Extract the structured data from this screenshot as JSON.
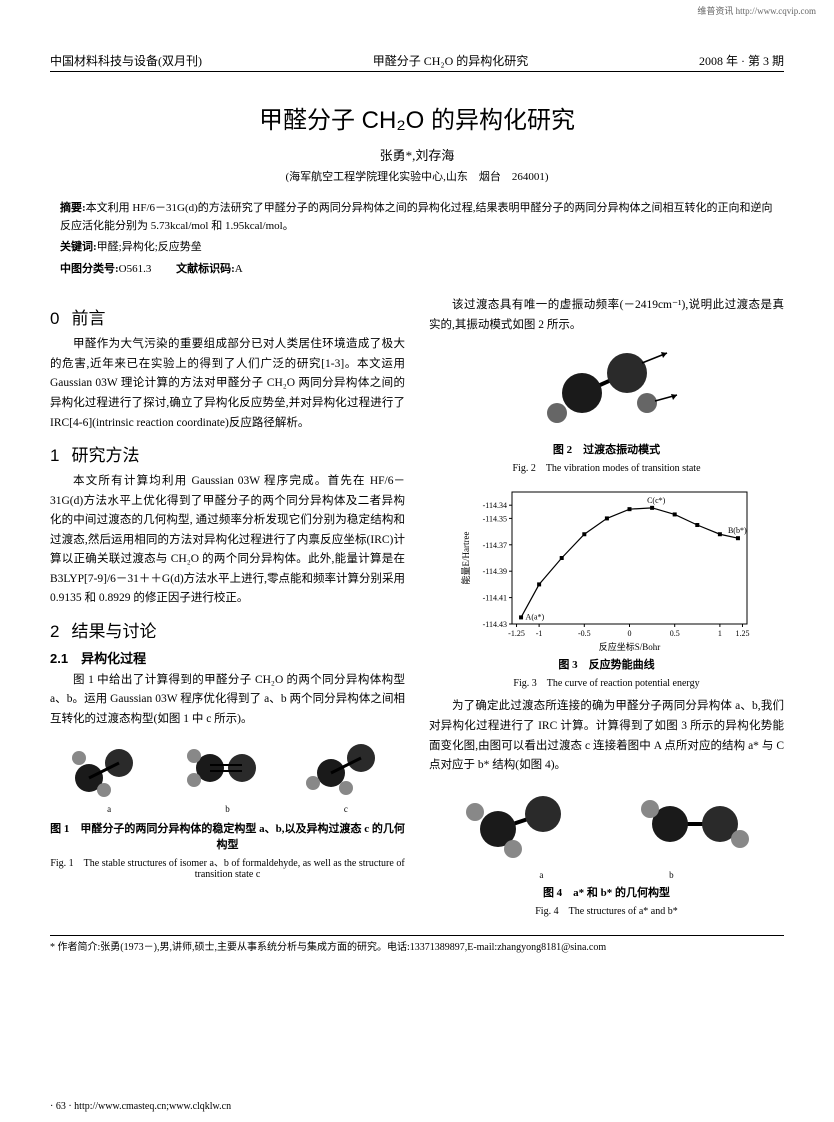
{
  "watermark": "维普资讯 http://www.cqvip.com",
  "header": {
    "left": "中国材料科技与设备(双月刊)",
    "center": "甲醛分子 CH₂O 的异构化研究",
    "right": "2008 年 · 第 3 期"
  },
  "title": "甲醛分子 CH₂O 的异构化研究",
  "authors": "张勇*,刘存海",
  "affiliation": "(海军航空工程学院理化实验中心,山东　烟台　264001)",
  "abstract_label": "摘要:",
  "abstract": "本文利用 HF/6－31G(d)的方法研究了甲醛分子的两同分异构体之间的异构化过程,结果表明甲醛分子的两同分异构体之间相互转化的正向和逆向反应活化能分别为 5.73kcal/mol 和 1.95kcal/mol。",
  "keywords_label": "关键词:",
  "keywords": "甲醛;异构化;反应势垒",
  "clc_label": "中图分类号:",
  "clc": "O561.3",
  "doccode_label": "文献标识码:",
  "doccode": "A",
  "sec0_num": "0",
  "sec0_title": "前言",
  "sec0_p1": "甲醛作为大气污染的重要组成部分已对人类居住环境造成了极大的危害,近年来已在实验上的得到了人们广泛的研究[1-3]。本文运用 Gaussian 03W 理论计算的方法对甲醛分子 CH₂O 两同分异构体之间的异构化过程进行了探讨,确立了异构化反应势垒,并对异构化过程进行了 IRC[4-6](intrinsic reaction coordinate)反应路径解析。",
  "sec1_num": "1",
  "sec1_title": "研究方法",
  "sec1_p1": "本文所有计算均利用 Gaussian 03W 程序完成。首先在 HF/6－31G(d)方法水平上优化得到了甲醛分子的两个同分异构体及二者异构化的中间过渡态的几何构型, 通过频率分析发现它们分别为稳定结构和过渡态,然后运用相同的方法对异构化过程进行了内禀反应坐标(IRC)计算以正确关联过渡态与 CH₂O 的两个同分异构体。此外,能量计算是在 B3LYP[7-9]/6－31＋＋G(d)方法水平上进行,零点能和频率计算分别采用 0.9135 和 0.8929 的修正因子进行校正。",
  "sec2_num": "2",
  "sec2_title": "结果与讨论",
  "sec21_title": "2.1　异构化过程",
  "sec21_p1": "图 1 中给出了计算得到的甲醛分子 CH₂O 的两个同分异构体构型 a、b。运用 Gaussian 03W 程序优化得到了 a、b 两个同分异构体之间相互转化的过渡态构型(如图 1 中 c 所示)。",
  "fig1_cn": "图 1　甲醛分子的两同分异构体的稳定构型 a、b,以及异构过渡态 c 的几何构型",
  "fig1_en": "Fig. 1　The stable structures of isomer a、b of formaldehyde, as well as the structure of transition state c",
  "right_p1": "该过渡态具有唯一的虚振动频率(－2419cm⁻¹),说明此过渡态是真实的,其振动模式如图 2 所示。",
  "fig2_cn": "图 2　过渡态振动模式",
  "fig2_en": "Fig. 2　The vibration modes of transition state",
  "fig3_cn": "图 3　反应势能曲线",
  "fig3_en": "Fig. 3　The curve of reaction potential energy",
  "right_p2": "为了确定此过渡态所连接的确为甲醛分子两同分异构体 a、b,我们对异构化过程进行了 IRC 计算。计算得到了如图 3 所示的异构化势能面变化图,由图可以看出过渡态 c 连接着图中 A 点所对应的结构 a* 与 C 点对应于 b* 结构(如图 4)。",
  "fig4_cn": "图 4　a* 和 b* 的几何构型",
  "fig4_en": "Fig. 4　The structures of a* and b*",
  "footnote": "* 作者简介:张勇(1973－),男,讲师,硕士,主要从事系统分析与集成方面的研究。电话:13371389897,E-mail:zhangyong8181@sina.com",
  "footer": "· 63 · http://www.cmasteq.cn;www.clqklw.cn",
  "chart": {
    "type": "line",
    "xlabel": "反应坐标S/Bohr",
    "ylabel": "能量E/Hartree",
    "xlim": [
      -1.3,
      1.3
    ],
    "ylim": [
      -114.43,
      -114.33
    ],
    "xticks": [
      -1.25,
      -1,
      -0.5,
      0,
      0.5,
      1,
      1.25
    ],
    "yticks": [
      -114.43,
      -114.41,
      -114.39,
      -114.37,
      -114.35,
      -114.34
    ],
    "points_x": [
      -1.2,
      -1.0,
      -0.75,
      -0.5,
      -0.25,
      0,
      0.25,
      0.5,
      0.75,
      1.0,
      1.2
    ],
    "points_y": [
      -114.425,
      -114.4,
      -114.38,
      -114.362,
      -114.35,
      -114.343,
      -114.342,
      -114.347,
      -114.355,
      -114.362,
      -114.365
    ],
    "annot_A": "A(a*)",
    "annot_B": "B(b*)",
    "annot_C": "C(c*)",
    "line_color": "#000000",
    "marker_color": "#000000",
    "axis_color": "#000000",
    "bg_color": "#ffffff",
    "font_size": 8
  },
  "mol_colors": {
    "atom_dark": "#1a1a1a",
    "atom_mid": "#444444",
    "atom_light": "#888888"
  },
  "sublabels": {
    "a": "a",
    "b": "b",
    "c": "c"
  }
}
